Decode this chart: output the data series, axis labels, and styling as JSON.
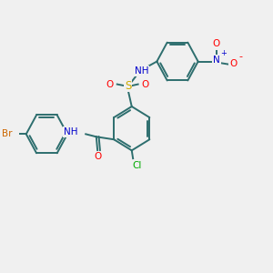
{
  "bg_color": "#f0f0f0",
  "bond_color": "#2d6e6e",
  "colors": {
    "C": "#2d6e6e",
    "N": "#0000cc",
    "O": "#ff0000",
    "S": "#ccaa00",
    "Cl": "#00aa00",
    "Br": "#cc6600",
    "H": "#2d6e6e"
  },
  "ring_r": 0.82
}
